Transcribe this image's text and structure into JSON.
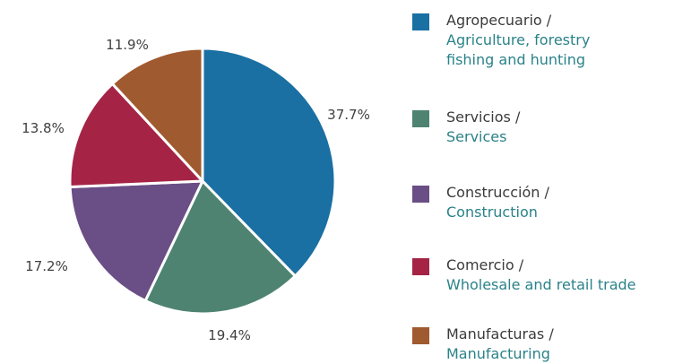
{
  "chart_data": {
    "type": "pie",
    "title": "",
    "slices": [
      {
        "label_es": "Agropecuario /",
        "label_en_lines": [
          "Agriculture, forestry",
          "fishing and hunting"
        ],
        "value": 37.7,
        "display": "37.7%",
        "color": "#1a6fa3"
      },
      {
        "label_es": "Servicios /",
        "label_en_lines": [
          "Services"
        ],
        "value": 19.4,
        "display": "19.4%",
        "color": "#4e8372"
      },
      {
        "label_es": "Construcción /",
        "label_en_lines": [
          "Construction"
        ],
        "value": 17.2,
        "display": "17.2%",
        "color": "#6a4e86"
      },
      {
        "label_es": "Comercio /",
        "label_en_lines": [
          "Wholesale and retail trade"
        ],
        "value": 13.8,
        "display": "13.8%",
        "color": "#a52446"
      },
      {
        "label_es": "Manufacturas /",
        "label_en_lines": [
          "Manufacturing"
        ],
        "value": 11.9,
        "display": "11.9%",
        "color": "#a05a2f"
      }
    ],
    "start_angle_deg": 0,
    "direction": "clockwise",
    "legend_position": "right"
  }
}
